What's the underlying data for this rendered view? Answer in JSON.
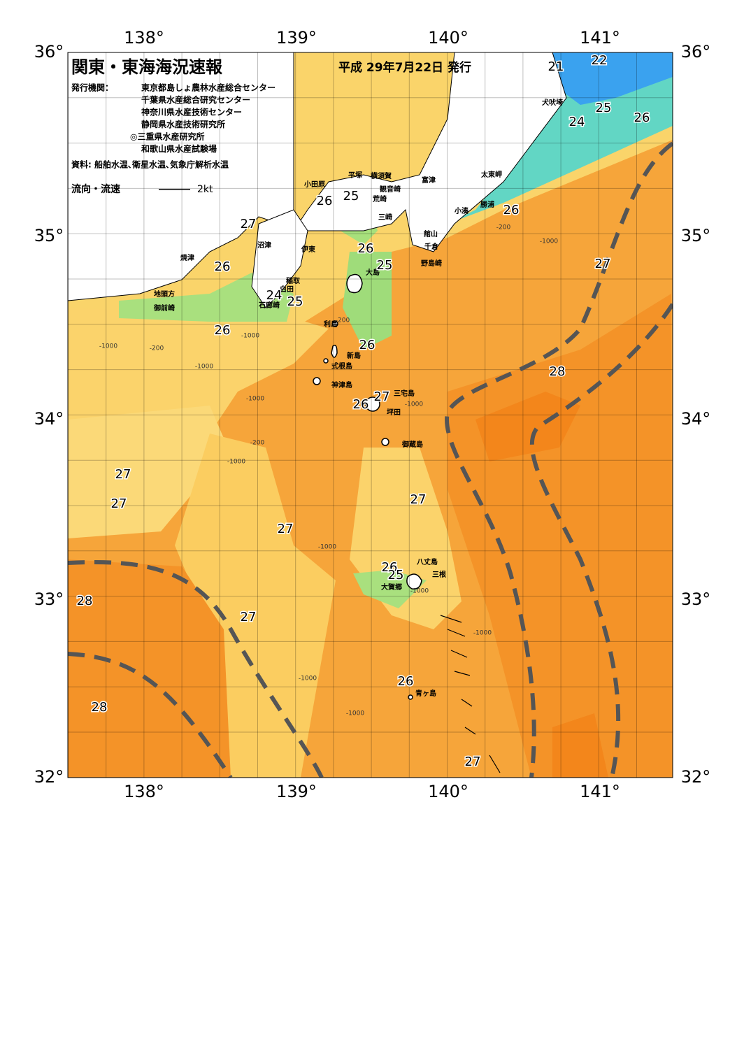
{
  "header": {
    "title": "関東・東海海況速報",
    "issued": "平成 29年7月22日 発行",
    "issuer_label": "発行機関：",
    "issuers": [
      "東京都島しょ農林水産総合センター",
      "千葉県水産総合研究センター",
      "神奈川県水産技術センター",
      "静岡県水産技術研究所",
      "◎三重県水産研究所",
      "和歌山県水産試験場"
    ],
    "source": "資料: 船舶水温､衛星水温､気象庁解析水温",
    "current_legend": "流向・流速",
    "current_scale": "2kt"
  },
  "map": {
    "lon_labels": [
      "138°",
      "139°",
      "140°",
      "141°"
    ],
    "lat_labels": [
      "36°",
      "35°",
      "34°",
      "33°",
      "32°"
    ],
    "places": [
      "犬吠埼",
      "太東岬",
      "勝浦",
      "小湊",
      "富津",
      "横須賀",
      "観音崎",
      "荒崎",
      "三崎",
      "平塚",
      "小田原",
      "館山",
      "千倉",
      "野島崎",
      "沼津",
      "伊東",
      "焼津",
      "稲取",
      "白田",
      "石廊崎",
      "地頭方",
      "御前崎",
      "大島",
      "利島",
      "新島",
      "式根島",
      "神津島",
      "三宅島",
      "坪田",
      "御蔵島",
      "八丈島",
      "三根",
      "大賀郷",
      "青ヶ島"
    ],
    "temperature_labels": [
      21,
      22,
      25,
      24,
      26,
      26,
      27,
      26,
      25,
      27,
      26,
      26,
      25,
      24,
      25,
      26,
      26,
      28,
      27,
      26,
      27,
      27,
      27,
      27,
      26,
      25,
      28,
      27,
      26,
      28,
      27
    ],
    "depth_labels": [
      "-1000",
      "-200",
      "-1000",
      "-1000",
      "-200",
      "-1000",
      "-200",
      "-1000",
      "-1000",
      "-1000",
      "-1000",
      "-1000",
      "-1000",
      "-200",
      "-1000",
      "-1000"
    ]
  }
}
